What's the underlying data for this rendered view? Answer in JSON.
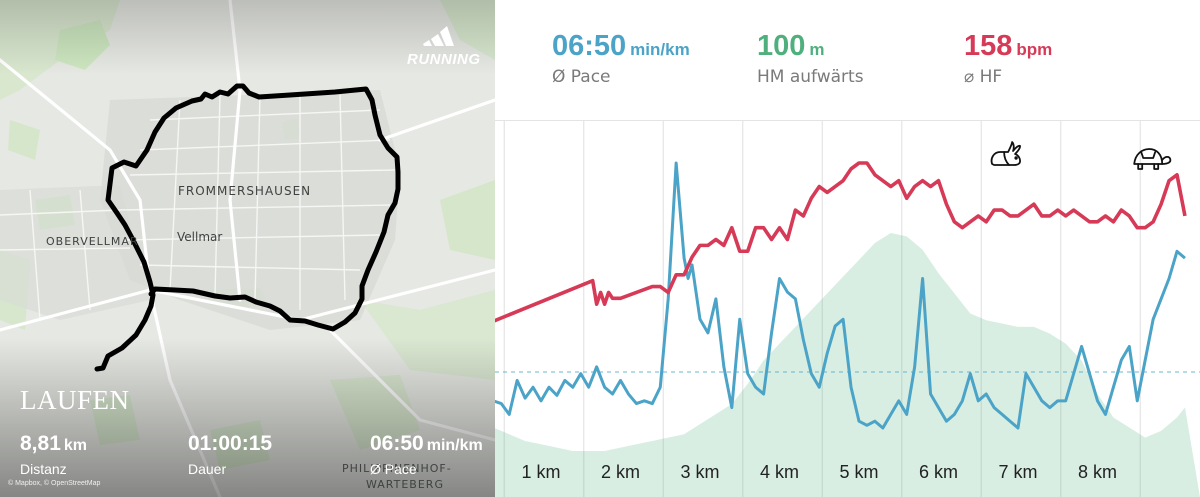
{
  "map": {
    "place_labels": {
      "frommershausen": "FROMMERSHAUSEN",
      "obervellmar": "OBERVELLMAR",
      "vellmar": "Vellmar",
      "philippinenhof": "PHILIPPINENHOF-",
      "warteberg": "WARTEBERG"
    },
    "brand": "RUNNING",
    "brand_icon": "adidas-logo-icon",
    "activity_title": "LAUFEN",
    "stats": {
      "distance": {
        "value": "8,81",
        "unit": "km",
        "label": "Distanz"
      },
      "duration": {
        "value": "01:00:15",
        "label": "Dauer"
      },
      "pace": {
        "value": "06:50",
        "unit": "min/km",
        "label": "Ø Pace"
      }
    },
    "attribution": "© Mapbox, © OpenStreetMap",
    "route_color": "#000000"
  },
  "metrics": {
    "pace": {
      "value": "06:50",
      "unit": "min/km",
      "label": "Ø Pace",
      "color": "#4ba3c7"
    },
    "elevation": {
      "value": "100",
      "unit": "m",
      "label": "HM aufwärts",
      "color": "#4fb07e"
    },
    "heart_rate": {
      "value": "158",
      "unit": "bpm",
      "label": "⌀ HF",
      "color": "#d63a57"
    }
  },
  "chart_data": {
    "type": "line",
    "x_unit": "km",
    "x_range": [
      0,
      9.1
    ],
    "categories": [
      "1 km",
      "2 km",
      "3 km",
      "4 km",
      "5 km",
      "6 km",
      "7 km",
      "8 km"
    ],
    "grid": "vertical lines at each km",
    "markers": [
      {
        "at_km": 6.8,
        "icon": "rabbit-icon"
      },
      {
        "at_km": 8.6,
        "icon": "turtle-icon"
      }
    ],
    "series": [
      {
        "color": "#d63a57",
        "average_line": "dashed",
        "x": [
          0.0,
          0.2,
          1.65,
          1.7,
          1.75,
          1.8,
          1.85,
          1.9,
          2.0,
          2.2,
          2.4,
          2.5,
          2.6,
          2.7,
          2.8,
          2.9,
          3.0,
          3.1,
          3.2,
          3.3,
          3.4,
          3.5,
          3.6,
          3.7,
          3.8,
          3.9,
          4.0,
          4.1,
          4.2,
          4.3,
          4.4,
          4.5,
          4.6,
          4.7,
          4.8,
          4.9,
          5.0,
          5.1,
          5.2,
          5.3,
          5.4,
          5.5,
          5.6,
          5.7,
          5.8,
          5.9,
          6.0,
          6.1,
          6.2,
          6.3,
          6.4,
          6.5,
          6.6,
          6.7,
          6.8,
          6.9,
          7.0,
          7.1,
          7.2,
          7.3,
          7.4,
          7.5,
          7.6,
          7.7,
          7.8,
          7.9,
          8.0,
          8.1,
          8.2,
          8.3,
          8.4,
          8.5,
          8.6,
          8.7,
          8.8,
          8.9,
          9.0,
          9.1
        ],
        "values": [
          136,
          151,
          159,
          155,
          157,
          155,
          157,
          156,
          156,
          157,
          158,
          158,
          157,
          160,
          160,
          163,
          165,
          165,
          166,
          165,
          168,
          164,
          164,
          168,
          168,
          166,
          168,
          166,
          171,
          170,
          173,
          175,
          174,
          175,
          176,
          178,
          179,
          179,
          177,
          176,
          175,
          176,
          173,
          175,
          176,
          175,
          176,
          172,
          169,
          168,
          169,
          170,
          169,
          171,
          171,
          170,
          170,
          171,
          172,
          170,
          170,
          171,
          170,
          171,
          170,
          169,
          169,
          170,
          169,
          171,
          170,
          168,
          168,
          169,
          172,
          176,
          177,
          170
        ]
      },
      {
        "color": "#4ba3c7",
        "average_line": "dashed",
        "x": [
          0.0,
          0.1,
          0.2,
          0.3,
          0.4,
          0.5,
          0.6,
          0.7,
          0.8,
          0.9,
          1.0,
          1.1,
          1.2,
          1.3,
          1.4,
          1.5,
          1.6,
          1.7,
          1.8,
          1.9,
          2.0,
          2.1,
          2.2,
          2.3,
          2.4,
          2.5,
          2.6,
          2.7,
          2.8,
          2.85,
          2.9,
          3.0,
          3.1,
          3.2,
          3.3,
          3.4,
          3.5,
          3.6,
          3.7,
          3.8,
          3.9,
          4.0,
          4.1,
          4.2,
          4.3,
          4.4,
          4.5,
          4.6,
          4.7,
          4.8,
          4.9,
          5.0,
          5.1,
          5.2,
          5.3,
          5.4,
          5.5,
          5.6,
          5.7,
          5.8,
          5.9,
          6.0,
          6.1,
          6.2,
          6.3,
          6.4,
          6.5,
          6.6,
          6.7,
          6.8,
          6.9,
          7.0,
          7.1,
          7.2,
          7.3,
          7.4,
          7.5,
          7.6,
          7.7,
          7.8,
          7.9,
          8.0,
          8.1,
          8.2,
          8.3,
          8.4,
          8.5,
          8.6,
          8.7,
          8.8,
          8.9,
          9.0,
          9.1
        ],
        "values": [
          13.0,
          9.0,
          7.0,
          6.5,
          7.0,
          6.8,
          6.0,
          8.5,
          7.2,
          8.0,
          7.0,
          8.0,
          7.4,
          8.5,
          8.0,
          9.0,
          8.0,
          9.5,
          8.0,
          7.5,
          8.5,
          7.5,
          6.8,
          7.0,
          6.8,
          8.0,
          14.5,
          24.5,
          17.5,
          16.0,
          17.0,
          13.0,
          12.0,
          14.5,
          9.5,
          6.5,
          13.0,
          9.0,
          8.0,
          7.5,
          12.0,
          16.0,
          15.0,
          14.5,
          11.5,
          9.0,
          8.0,
          10.5,
          12.5,
          13.0,
          8.0,
          5.5,
          5.2,
          5.5,
          5.0,
          6.0,
          7.0,
          6.0,
          9.5,
          16.0,
          7.5,
          6.5,
          5.5,
          6.0,
          7.0,
          9.0,
          7.0,
          7.5,
          6.5,
          6.0,
          5.5,
          5.0,
          9.0,
          8.0,
          7.0,
          6.5,
          7.0,
          7.0,
          9.0,
          11.0,
          9.0,
          7.0,
          6.0,
          8.0,
          10.0,
          11.0,
          7.0,
          10.0,
          13.0,
          14.5,
          16.0,
          18.0,
          17.5
        ]
      },
      {
        "color": "#4fb07e",
        "type": "area",
        "x": [
          0.0,
          0.2,
          0.4,
          0.6,
          0.8,
          1.0,
          1.2,
          1.4,
          1.6,
          1.8,
          2.0,
          2.2,
          2.4,
          2.6,
          2.8,
          3.0,
          3.2,
          3.4,
          3.6,
          3.8,
          4.0,
          4.2,
          4.4,
          4.6,
          4.8,
          5.0,
          5.2,
          5.4,
          5.6,
          5.8,
          6.0,
          6.2,
          6.4,
          6.6,
          6.8,
          7.0,
          7.2,
          7.4,
          7.6,
          7.8,
          8.0,
          8.2,
          8.4,
          8.6,
          8.8,
          9.0,
          9.1
        ],
        "values": [
          200,
          188,
          180,
          178,
          176,
          175,
          174,
          173,
          173,
          173,
          174,
          175,
          176,
          177,
          178,
          181,
          184,
          187,
          193,
          200,
          205,
          210,
          215,
          220,
          225,
          230,
          235,
          238,
          237,
          233,
          226,
          220,
          214,
          212,
          211,
          210,
          210,
          208,
          205,
          200,
          190,
          183,
          180,
          177,
          179,
          183,
          186
        ]
      }
    ]
  }
}
